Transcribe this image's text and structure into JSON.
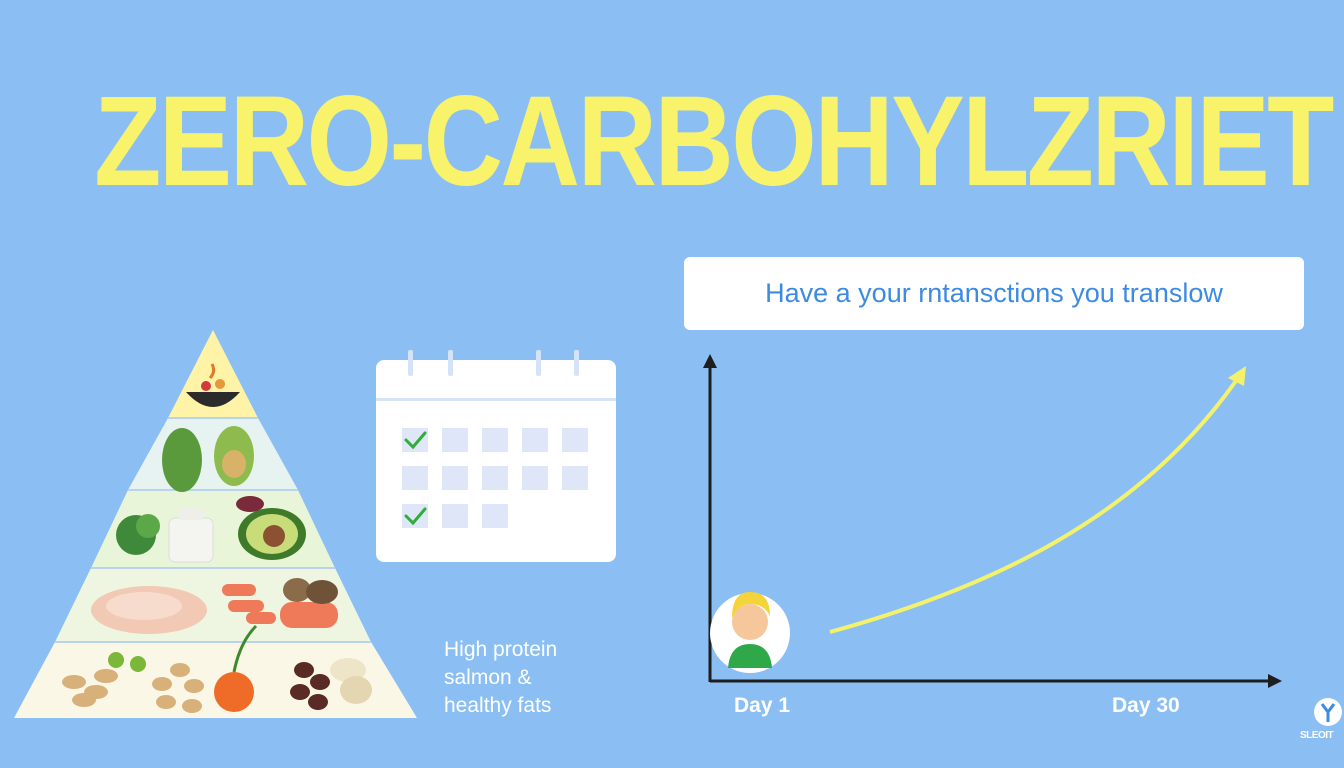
{
  "title": "ZERO-CARBOHYLZRIET",
  "banner": {
    "text": "Have a your rntansctions you translow"
  },
  "side_note": {
    "lines": [
      "High protein",
      "salmon &",
      "healthy fats"
    ]
  },
  "graph": {
    "start_label": "Day 1",
    "end_label": "Day 30"
  },
  "corner_logo": {
    "text": "SLEOIT"
  },
  "pyramid": {
    "levels": [
      "grains-and-nuts",
      "salmon-and-poultry",
      "greens-dairy-avocado",
      "vegetables",
      "bowl-top"
    ]
  },
  "calendar": {
    "rows": 3,
    "checked_rows": [
      1,
      3
    ]
  },
  "colors": {
    "background": "#8bbff4",
    "title": "#f8f36a",
    "banner_text": "#3d8ae3",
    "check": "#2fae3a",
    "trend": "#f3f26a"
  }
}
